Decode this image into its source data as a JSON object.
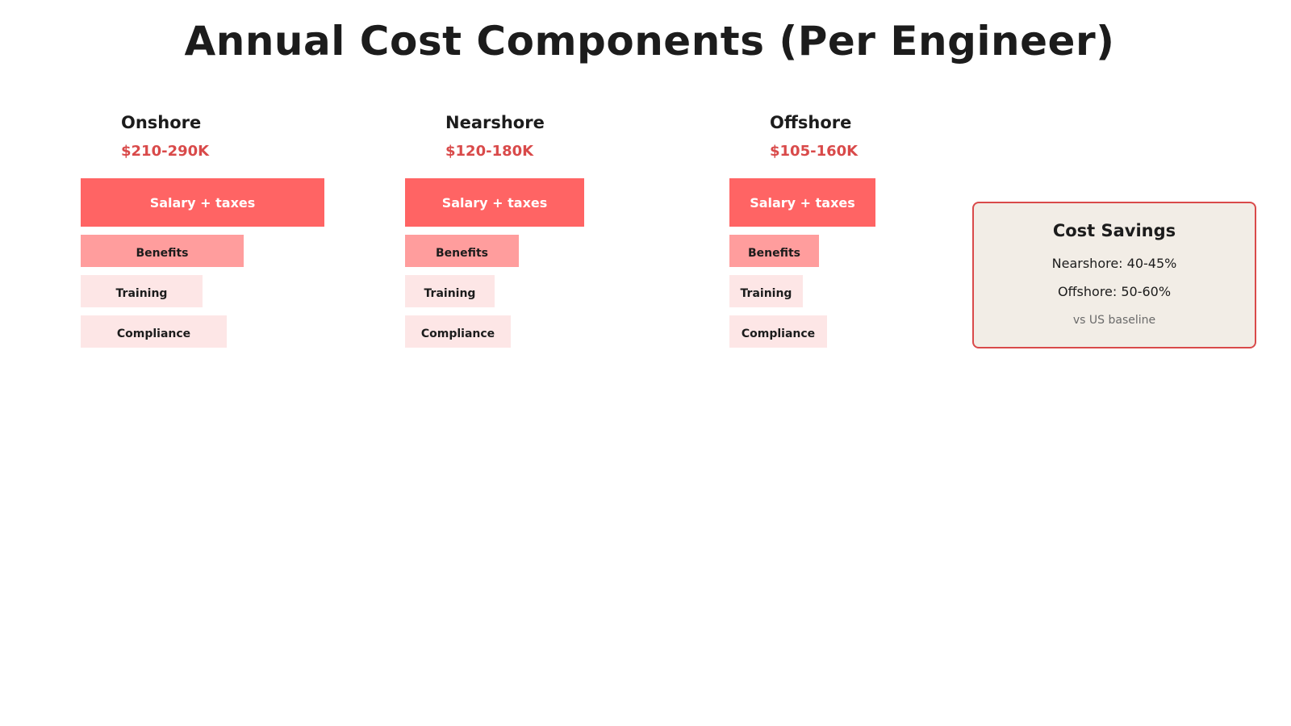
{
  "title": "Annual Cost Components (Per Engineer)",
  "columns": [
    {
      "name": "Onshore",
      "cost": "$210-290K",
      "components": [
        {
          "label": "Salary + taxes"
        },
        {
          "label": "Benefits"
        },
        {
          "label": "Training"
        },
        {
          "label": "Compliance"
        }
      ]
    },
    {
      "name": "Nearshore",
      "cost": "$120-180K",
      "components": [
        {
          "label": "Salary + taxes"
        },
        {
          "label": "Benefits"
        },
        {
          "label": "Training"
        },
        {
          "label": "Compliance"
        }
      ]
    },
    {
      "name": "Offshore",
      "cost": "$105-160K",
      "components": [
        {
          "label": "Salary + taxes"
        },
        {
          "label": "Benefits"
        },
        {
          "label": "Training"
        },
        {
          "label": "Compliance"
        }
      ]
    }
  ],
  "savings": {
    "title": "Cost Savings",
    "nearshore": "Nearshore: 40-45%",
    "offshore": "Offshore: 50-60%",
    "note": "vs US baseline"
  },
  "colors": {
    "salary": "#ff6464",
    "benefits": "#ff9d9d",
    "training": "#fde6e6",
    "compliance": "#fde6e6",
    "cost_text": "#d94a4a",
    "panel_bg": "#f2ede6",
    "panel_border": "#d94a4a"
  }
}
